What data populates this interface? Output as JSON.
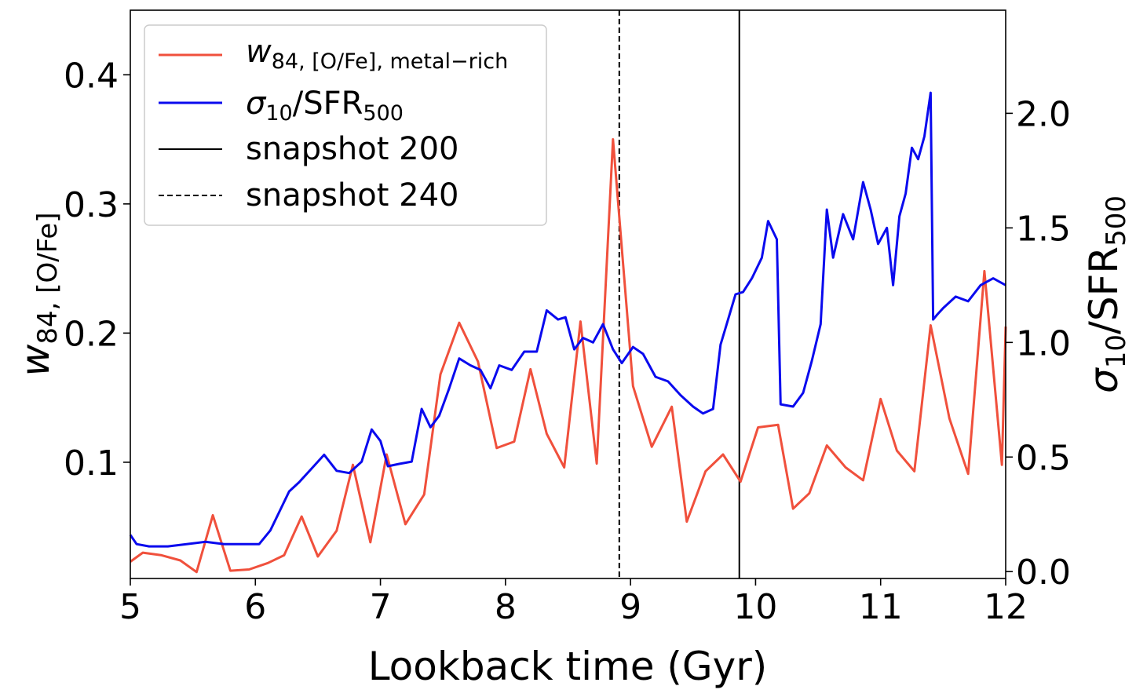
{
  "chart_data": {
    "type": "line",
    "title": "",
    "xlabel": "Lookback time (Gyr)",
    "ylabel_left": {
      "main": "w",
      "sub": "84, [O/Fe]"
    },
    "ylabel_right": {
      "main": "σ",
      "sub1": "10",
      "mid": "/SFR",
      "sub2": "500"
    },
    "xlim": [
      5,
      12
    ],
    "ylim_left": [
      0.01,
      0.45
    ],
    "ylim_right": [
      -0.03,
      2.45
    ],
    "x_ticks": [
      5,
      6,
      7,
      8,
      9,
      10,
      11,
      12
    ],
    "y_left_ticks": [
      0.1,
      0.2,
      0.3,
      0.4
    ],
    "y_right_ticks": [
      0.0,
      0.5,
      1.0,
      1.5,
      2.0
    ],
    "grid": false,
    "legend_position": "upper-left",
    "colors": {
      "w84": "#f0503c",
      "sigma": "#0a0aee",
      "snap200": "#000000",
      "snap240": "#000000"
    },
    "legend": [
      {
        "key": "w84",
        "main": "w",
        "sub": "84, [O/Fe], metal−rich",
        "style": "solid",
        "color": "#f0503c"
      },
      {
        "key": "sigma",
        "main": "σ",
        "sub1": "10",
        "mid": "/SFR",
        "sub2": "500",
        "style": "solid",
        "color": "#0a0aee"
      },
      {
        "key": "snap200",
        "text": "snapshot 200",
        "style": "solid",
        "color": "#000000"
      },
      {
        "key": "snap240",
        "text": "snapshot 240",
        "style": "dashed",
        "color": "#000000"
      }
    ],
    "vlines": [
      {
        "key": "snap200",
        "x": 9.87,
        "style": "solid"
      },
      {
        "key": "snap240",
        "x": 8.91,
        "style": "dashed"
      }
    ],
    "series": [
      {
        "key": "w84",
        "axis": "left",
        "x": [
          5.0,
          5.1,
          5.25,
          5.4,
          5.53,
          5.66,
          5.8,
          5.95,
          6.1,
          6.23,
          6.37,
          6.5,
          6.65,
          6.78,
          6.92,
          7.05,
          7.2,
          7.35,
          7.48,
          7.63,
          7.78,
          7.93,
          8.07,
          8.2,
          8.33,
          8.47,
          8.6,
          8.73,
          8.86,
          9.02,
          9.17,
          9.33,
          9.45,
          9.6,
          9.74,
          9.88,
          10.02,
          10.18,
          10.3,
          10.43,
          10.57,
          10.72,
          10.86,
          11.0,
          11.13,
          11.27,
          11.4,
          11.55,
          11.7,
          11.83,
          11.97,
          12.0
        ],
        "y": [
          0.023,
          0.03,
          0.028,
          0.024,
          0.015,
          0.059,
          0.016,
          0.017,
          0.022,
          0.028,
          0.058,
          0.027,
          0.047,
          0.098,
          0.038,
          0.106,
          0.052,
          0.075,
          0.168,
          0.208,
          0.178,
          0.111,
          0.116,
          0.172,
          0.122,
          0.096,
          0.209,
          0.099,
          0.35,
          0.159,
          0.112,
          0.143,
          0.054,
          0.093,
          0.106,
          0.085,
          0.127,
          0.129,
          0.064,
          0.076,
          0.113,
          0.096,
          0.086,
          0.149,
          0.109,
          0.093,
          0.206,
          0.134,
          0.091,
          0.248,
          0.098,
          0.205
        ]
      },
      {
        "key": "sigma",
        "axis": "right",
        "x": [
          5.0,
          5.05,
          5.15,
          5.3,
          5.45,
          5.6,
          5.75,
          5.9,
          6.03,
          6.12,
          6.2,
          6.27,
          6.35,
          6.45,
          6.55,
          6.65,
          6.75,
          6.85,
          6.93,
          7.0,
          7.06,
          7.15,
          7.25,
          7.33,
          7.4,
          7.47,
          7.55,
          7.63,
          7.72,
          7.8,
          7.88,
          7.95,
          8.05,
          8.15,
          8.25,
          8.33,
          8.42,
          8.48,
          8.55,
          8.62,
          8.7,
          8.78,
          8.86,
          8.93,
          9.02,
          9.1,
          9.2,
          9.3,
          9.4,
          9.5,
          9.58,
          9.66,
          9.72,
          9.78,
          9.84,
          9.9,
          9.97,
          10.05,
          10.1,
          10.17,
          10.2,
          10.3,
          10.38,
          10.45,
          10.52,
          10.57,
          10.62,
          10.7,
          10.78,
          10.86,
          10.92,
          10.98,
          11.05,
          11.1,
          11.15,
          11.2,
          11.25,
          11.3,
          11.35,
          11.4,
          11.42,
          11.45,
          11.5,
          11.6,
          11.7,
          11.8,
          11.9,
          12.0
        ],
        "y": [
          0.16,
          0.12,
          0.11,
          0.11,
          0.12,
          0.13,
          0.12,
          0.12,
          0.12,
          0.18,
          0.27,
          0.35,
          0.39,
          0.45,
          0.51,
          0.44,
          0.43,
          0.48,
          0.62,
          0.57,
          0.46,
          0.47,
          0.48,
          0.71,
          0.63,
          0.68,
          0.8,
          0.93,
          0.9,
          0.88,
          0.8,
          0.9,
          0.88,
          0.96,
          0.96,
          1.14,
          1.1,
          1.11,
          0.97,
          1.02,
          1.0,
          1.08,
          0.97,
          0.91,
          0.98,
          0.95,
          0.85,
          0.83,
          0.77,
          0.72,
          0.69,
          0.71,
          0.99,
          1.1,
          1.21,
          1.22,
          1.28,
          1.37,
          1.53,
          1.45,
          0.73,
          0.72,
          0.78,
          0.92,
          1.08,
          1.58,
          1.37,
          1.56,
          1.45,
          1.7,
          1.58,
          1.43,
          1.5,
          1.25,
          1.55,
          1.65,
          1.85,
          1.8,
          1.9,
          2.09,
          1.1,
          1.12,
          1.15,
          1.2,
          1.18,
          1.25,
          1.28,
          1.25
        ]
      }
    ]
  }
}
